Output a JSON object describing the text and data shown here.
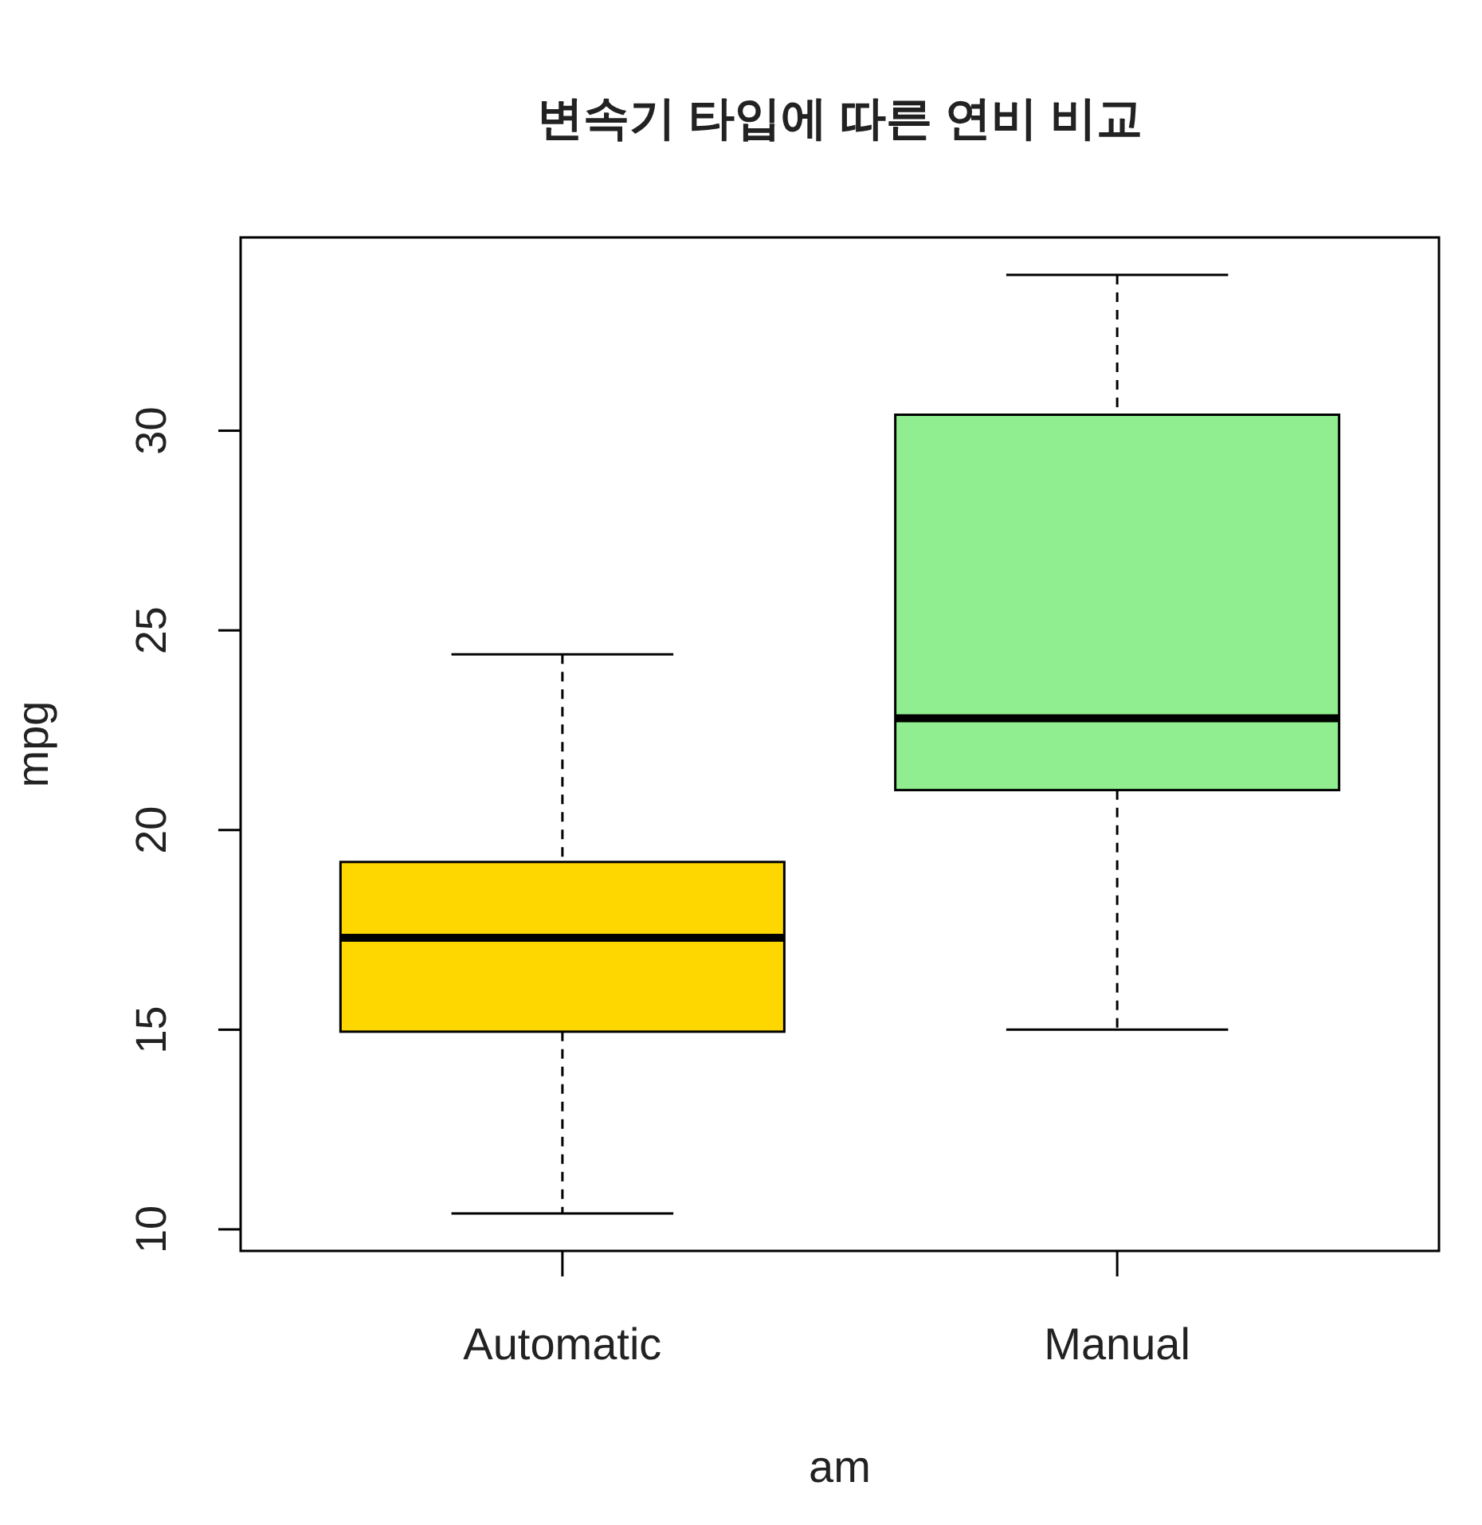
{
  "chart_data": {
    "type": "box",
    "title": "변속기 타입에 따른 연비 비교",
    "xlabel": "am",
    "ylabel": "mpg",
    "categories": [
      "Automatic",
      "Manual"
    ],
    "boxes": [
      {
        "low": 10.4,
        "q1": 14.95,
        "median": 17.3,
        "q3": 19.2,
        "high": 24.4
      },
      {
        "low": 15.0,
        "q1": 21.0,
        "median": 22.8,
        "q3": 30.4,
        "high": 33.9
      }
    ],
    "colors": [
      "#ffd700",
      "#90ee90"
    ],
    "ylim": [
      9.46,
      34.84
    ],
    "yticks": [
      10,
      15,
      20,
      25,
      30
    ],
    "grid": false
  }
}
